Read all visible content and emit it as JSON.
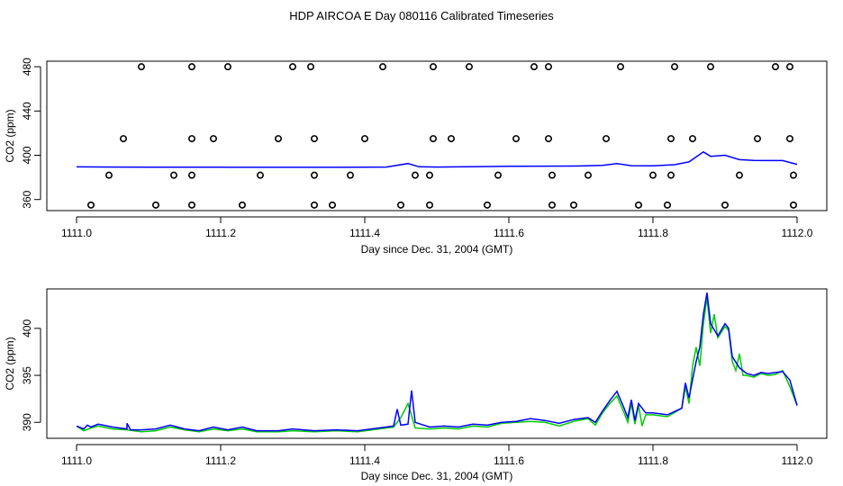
{
  "figure": {
    "title": "HDP AIRCOA E  Day 080116  Calibrated Timeseries",
    "colors": {
      "flag": "#000000",
      "co2_blue": "#0000ff",
      "co2_green": "#00cc00",
      "frame": "#000000"
    }
  },
  "chart_data": [
    {
      "type": "scatter",
      "title": "",
      "xlabel": "Day since Dec. 31, 2004 (GMT)",
      "ylabel": "CO2 (ppm)",
      "xlim": [
        1111.0,
        1112.0
      ],
      "ylim": [
        350,
        485
      ],
      "xticks": [
        "1111.0",
        "1111.2",
        "1111.4",
        "1111.6",
        "1111.8",
        "1112.0"
      ],
      "yticks": [
        "360",
        "400",
        "440",
        "480"
      ],
      "ytick_values": [
        360,
        400,
        440,
        480
      ],
      "grid": false,
      "series": [
        {
          "values": [
            [
              1111.02,
              355
            ],
            [
              1111.11,
              355
            ],
            [
              1111.16,
              355
            ],
            [
              1111.23,
              355
            ],
            [
              1111.33,
              355
            ],
            [
              1111.355,
              355
            ],
            [
              1111.45,
              355
            ],
            [
              1111.49,
              355
            ],
            [
              1111.57,
              355
            ],
            [
              1111.66,
              355
            ],
            [
              1111.69,
              355
            ],
            [
              1111.78,
              355
            ],
            [
              1111.82,
              355
            ],
            [
              1111.9,
              355
            ],
            [
              1111.995,
              355
            ],
            [
              1111.045,
              382
            ],
            [
              1111.135,
              382
            ],
            [
              1111.16,
              382
            ],
            [
              1111.255,
              382
            ],
            [
              1111.33,
              382
            ],
            [
              1111.38,
              382
            ],
            [
              1111.47,
              382
            ],
            [
              1111.49,
              382
            ],
            [
              1111.585,
              382
            ],
            [
              1111.66,
              382
            ],
            [
              1111.71,
              382
            ],
            [
              1111.8,
              382
            ],
            [
              1111.825,
              382
            ],
            [
              1111.92,
              382
            ],
            [
              1111.995,
              382
            ],
            [
              1111.065,
              415
            ],
            [
              1111.16,
              415
            ],
            [
              1111.19,
              415
            ],
            [
              1111.28,
              415
            ],
            [
              1111.33,
              415
            ],
            [
              1111.4,
              415
            ],
            [
              1111.495,
              415
            ],
            [
              1111.52,
              415
            ],
            [
              1111.61,
              415
            ],
            [
              1111.655,
              415
            ],
            [
              1111.735,
              415
            ],
            [
              1111.825,
              415
            ],
            [
              1111.855,
              415
            ],
            [
              1111.945,
              415
            ],
            [
              1111.99,
              415
            ],
            [
              1111.09,
              480
            ],
            [
              1111.16,
              480
            ],
            [
              1111.21,
              480
            ],
            [
              1111.3,
              480
            ],
            [
              1111.325,
              480
            ],
            [
              1111.425,
              480
            ],
            [
              1111.495,
              480
            ],
            [
              1111.545,
              480
            ],
            [
              1111.635,
              480
            ],
            [
              1111.655,
              480
            ],
            [
              1111.755,
              480
            ],
            [
              1111.83,
              480
            ],
            [
              1111.88,
              480
            ],
            [
              1111.97,
              480
            ],
            [
              1111.99,
              480
            ]
          ]
        },
        {
          "values": [
            [
              1111.0,
              389.5
            ],
            [
              1111.05,
              389.4
            ],
            [
              1111.1,
              389.3
            ],
            [
              1111.15,
              389.2
            ],
            [
              1111.2,
              389.2
            ],
            [
              1111.25,
              389.1
            ],
            [
              1111.3,
              389.1
            ],
            [
              1111.35,
              389.1
            ],
            [
              1111.4,
              389.2
            ],
            [
              1111.43,
              389.4
            ],
            [
              1111.46,
              392.5
            ],
            [
              1111.475,
              389.6
            ],
            [
              1111.5,
              389.4
            ],
            [
              1111.55,
              389.6
            ],
            [
              1111.6,
              390.0
            ],
            [
              1111.65,
              390.2
            ],
            [
              1111.7,
              390.3
            ],
            [
              1111.73,
              390.8
            ],
            [
              1111.75,
              392.5
            ],
            [
              1111.77,
              390.6
            ],
            [
              1111.8,
              390.5
            ],
            [
              1111.83,
              391.5
            ],
            [
              1111.85,
              394.0
            ],
            [
              1111.87,
              403.0
            ],
            [
              1111.88,
              399.0
            ],
            [
              1111.9,
              400.0
            ],
            [
              1111.92,
              396.0
            ],
            [
              1111.94,
              395.3
            ],
            [
              1111.96,
              395.2
            ],
            [
              1111.98,
              395.2
            ],
            [
              1112.0,
              391.8
            ]
          ]
        }
      ]
    },
    {
      "type": "line",
      "title": "",
      "xlabel": "Day since Dec. 31, 2004 (GMT)",
      "ylabel": "CO2 (ppm)",
      "xlim": [
        1111.0,
        1112.0
      ],
      "ylim": [
        388.3,
        404.2
      ],
      "xticks": [
        "1111.0",
        "1111.2",
        "1111.4",
        "1111.6",
        "1111.8",
        "1112.0"
      ],
      "yticks": [
        "390",
        "395",
        "400"
      ],
      "ytick_values": [
        390,
        395,
        400
      ],
      "grid": false,
      "series": [
        {
          "color": "#00cc00",
          "values": [
            [
              1111.0,
              389.6
            ],
            [
              1111.01,
              389.1
            ],
            [
              1111.02,
              389.4
            ],
            [
              1111.03,
              389.6
            ],
            [
              1111.05,
              389.3
            ],
            [
              1111.07,
              389.2
            ],
            [
              1111.09,
              389.0
            ],
            [
              1111.11,
              389.1
            ],
            [
              1111.13,
              389.5
            ],
            [
              1111.15,
              389.2
            ],
            [
              1111.17,
              389.0
            ],
            [
              1111.19,
              389.3
            ],
            [
              1111.21,
              389.1
            ],
            [
              1111.23,
              389.3
            ],
            [
              1111.25,
              389.0
            ],
            [
              1111.28,
              389.0
            ],
            [
              1111.3,
              389.1
            ],
            [
              1111.33,
              389.0
            ],
            [
              1111.36,
              389.1
            ],
            [
              1111.39,
              389.0
            ],
            [
              1111.42,
              389.3
            ],
            [
              1111.44,
              389.5
            ],
            [
              1111.45,
              390.5
            ],
            [
              1111.46,
              392.0
            ],
            [
              1111.47,
              389.4
            ],
            [
              1111.49,
              389.3
            ],
            [
              1111.51,
              389.4
            ],
            [
              1111.53,
              389.3
            ],
            [
              1111.55,
              389.6
            ],
            [
              1111.57,
              389.5
            ],
            [
              1111.59,
              389.9
            ],
            [
              1111.61,
              390.0
            ],
            [
              1111.63,
              390.1
            ],
            [
              1111.65,
              390.0
            ],
            [
              1111.67,
              389.6
            ],
            [
              1111.69,
              390.1
            ],
            [
              1111.71,
              390.4
            ],
            [
              1111.72,
              389.7
            ],
            [
              1111.73,
              391.0
            ],
            [
              1111.74,
              392.0
            ],
            [
              1111.75,
              392.8
            ],
            [
              1111.76,
              391.0
            ],
            [
              1111.765,
              390.0
            ],
            [
              1111.77,
              392.0
            ],
            [
              1111.775,
              389.8
            ],
            [
              1111.78,
              391.8
            ],
            [
              1111.785,
              389.6
            ],
            [
              1111.79,
              390.8
            ],
            [
              1111.8,
              390.8
            ],
            [
              1111.82,
              390.6
            ],
            [
              1111.84,
              391.5
            ],
            [
              1111.845,
              393.8
            ],
            [
              1111.85,
              392.0
            ],
            [
              1111.855,
              396.0
            ],
            [
              1111.86,
              398.0
            ],
            [
              1111.865,
              396.0
            ],
            [
              1111.87,
              400.5
            ],
            [
              1111.875,
              403.3
            ],
            [
              1111.88,
              399.5
            ],
            [
              1111.885,
              401.5
            ],
            [
              1111.89,
              399.0
            ],
            [
              1111.9,
              400.2
            ],
            [
              1111.905,
              399.8
            ],
            [
              1111.91,
              396.5
            ],
            [
              1111.915,
              395.5
            ],
            [
              1111.92,
              397.3
            ],
            [
              1111.925,
              395.0
            ],
            [
              1111.93,
              395.0
            ],
            [
              1111.94,
              394.8
            ],
            [
              1111.95,
              395.2
            ],
            [
              1111.96,
              395.0
            ],
            [
              1111.97,
              395.1
            ],
            [
              1111.98,
              395.5
            ],
            [
              1111.99,
              393.8
            ],
            [
              1112.0,
              391.8
            ]
          ]
        },
        {
          "color": "#0000ff",
          "values": [
            [
              1111.0,
              389.6
            ],
            [
              1111.01,
              389.3
            ],
            [
              1111.015,
              389.7
            ],
            [
              1111.02,
              389.5
            ],
            [
              1111.03,
              389.8
            ],
            [
              1111.05,
              389.5
            ],
            [
              1111.07,
              389.3
            ],
            [
              1111.07,
              389.9
            ],
            [
              1111.075,
              389.2
            ],
            [
              1111.09,
              389.2
            ],
            [
              1111.11,
              389.3
            ],
            [
              1111.13,
              389.7
            ],
            [
              1111.15,
              389.3
            ],
            [
              1111.17,
              389.1
            ],
            [
              1111.19,
              389.5
            ],
            [
              1111.21,
              389.2
            ],
            [
              1111.23,
              389.5
            ],
            [
              1111.25,
              389.1
            ],
            [
              1111.28,
              389.1
            ],
            [
              1111.3,
              389.3
            ],
            [
              1111.33,
              389.1
            ],
            [
              1111.36,
              389.2
            ],
            [
              1111.39,
              389.1
            ],
            [
              1111.42,
              389.4
            ],
            [
              1111.44,
              389.6
            ],
            [
              1111.445,
              391.4
            ],
            [
              1111.45,
              389.7
            ],
            [
              1111.46,
              389.8
            ],
            [
              1111.465,
              393.4
            ],
            [
              1111.47,
              390.0
            ],
            [
              1111.49,
              389.5
            ],
            [
              1111.51,
              389.6
            ],
            [
              1111.53,
              389.5
            ],
            [
              1111.55,
              389.8
            ],
            [
              1111.57,
              389.7
            ],
            [
              1111.59,
              390.0
            ],
            [
              1111.61,
              390.1
            ],
            [
              1111.63,
              390.4
            ],
            [
              1111.65,
              390.2
            ],
            [
              1111.67,
              389.9
            ],
            [
              1111.69,
              390.3
            ],
            [
              1111.71,
              390.5
            ],
            [
              1111.72,
              390.0
            ],
            [
              1111.73,
              391.2
            ],
            [
              1111.74,
              392.3
            ],
            [
              1111.75,
              393.3
            ],
            [
              1111.76,
              391.5
            ],
            [
              1111.765,
              390.5
            ],
            [
              1111.77,
              392.4
            ],
            [
              1111.775,
              390.2
            ],
            [
              1111.78,
              392.0
            ],
            [
              1111.79,
              391.0
            ],
            [
              1111.8,
              391.0
            ],
            [
              1111.82,
              390.8
            ],
            [
              1111.84,
              391.5
            ],
            [
              1111.845,
              394.2
            ],
            [
              1111.85,
              392.6
            ],
            [
              1111.86,
              396.5
            ],
            [
              1111.865,
              398.0
            ],
            [
              1111.87,
              401.5
            ],
            [
              1111.875,
              403.8
            ],
            [
              1111.88,
              400.5
            ],
            [
              1111.89,
              399.2
            ],
            [
              1111.9,
              400.5
            ],
            [
              1111.905,
              400.0
            ],
            [
              1111.91,
              397.0
            ],
            [
              1111.92,
              395.8
            ],
            [
              1111.93,
              395.2
            ],
            [
              1111.94,
              395.0
            ],
            [
              1111.95,
              395.3
            ],
            [
              1111.96,
              395.2
            ],
            [
              1111.97,
              395.3
            ],
            [
              1111.98,
              395.4
            ],
            [
              1111.99,
              394.5
            ],
            [
              1112.0,
              391.8
            ]
          ]
        }
      ]
    }
  ]
}
